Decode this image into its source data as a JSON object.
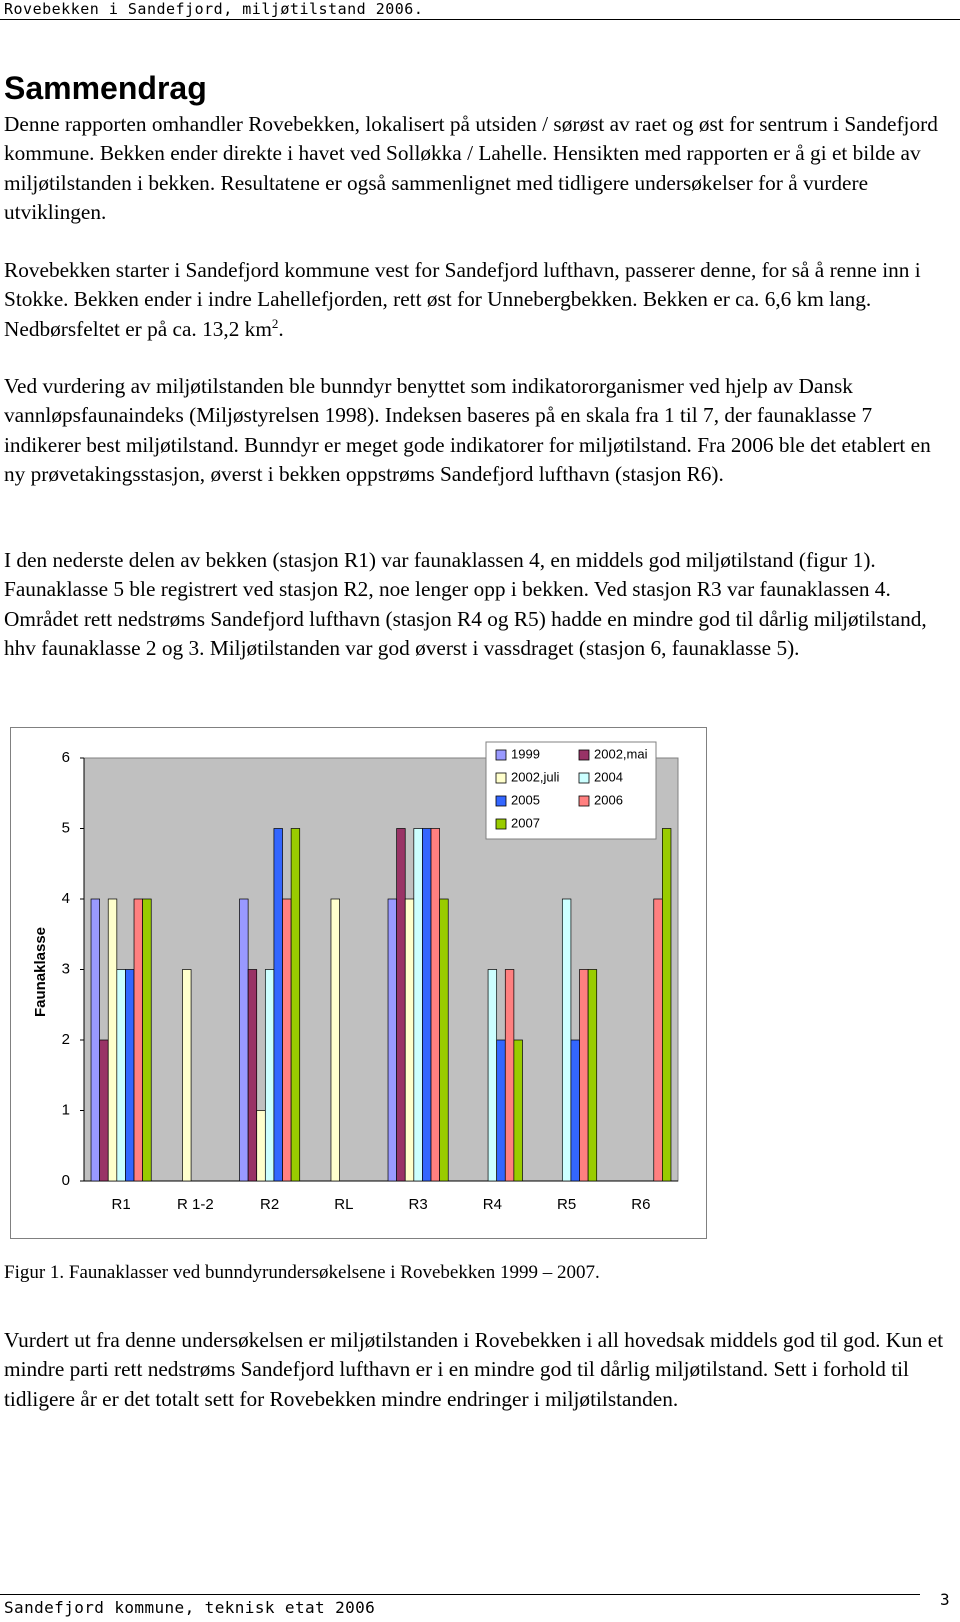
{
  "header": "Rovebekken i Sandefjord, miljøtilstand 2006.",
  "heading": "Sammendrag",
  "paragraphs": [
    {
      "text": "Denne rapporten omhandler Rovebekken, lokalisert på utsiden / sørøst av raet og øst for sentrum i Sandefjord kommune. Bekken ender direkte i havet ved Solløkka / Lahelle. Hensikten med rapporten er å gi et bilde av miljøtilstanden i bekken. Resultatene er også sammenlignet med tidligere undersøkelser for å vurdere utviklingen."
    },
    {
      "text": "Rovebekken starter i Sandefjord kommune vest for Sandefjord lufthavn, passerer denne, for så å renne inn i Stokke. Bekken ender i indre Lahellefjorden, rett øst for Unnebergbekken. Bekken er ca. 6,6 km lang. Nedbørsfeltet er på ca. 13,2 km",
      "superscript": "2",
      "after": "."
    },
    {
      "text": "Ved vurdering av miljøtilstanden ble bunndyr benyttet som indikatororganismer ved hjelp av Dansk vannløpsfaunaindeks (Miljøstyrelsen 1998). Indeksen baseres på en skala fra 1 til 7, der faunaklasse 7 indikerer best miljøtilstand. Bunndyr er meget gode indikatorer for miljøtilstand. Fra 2006 ble det etablert en ny prøvetakingsstasjon, øverst i bekken oppstrøms Sandefjord lufthavn (stasjon R6)."
    },
    {
      "text": "I den nederste delen av bekken (stasjon R1) var faunaklassen 4, en middels god miljøtilstand (figur 1). Faunaklasse 5 ble registrert ved stasjon R2, noe lenger opp i bekken. Ved stasjon R3 var faunaklassen 4. Området rett nedstrøms Sandefjord lufthavn (stasjon R4 og R5) hadde en mindre god til dårlig miljøtilstand, hhv faunaklasse 2 og 3. Miljøtilstanden var god øverst i vassdraget (stasjon 6, faunaklasse 5)."
    }
  ],
  "chart_data": {
    "type": "bar",
    "y_label": "Faunaklasse",
    "categories": [
      "R1",
      "R 1-2",
      "R2",
      "RL",
      "R3",
      "R4",
      "R5",
      "R6"
    ],
    "series": [
      {
        "name": "1999",
        "color": "#9999ff",
        "values": [
          4,
          null,
          4,
          null,
          4,
          null,
          null,
          null
        ]
      },
      {
        "name": "2002,mai",
        "color": "#993366",
        "values": [
          2,
          null,
          3,
          null,
          5,
          null,
          null,
          null
        ]
      },
      {
        "name": "2002,juli",
        "color": "#ffffcc",
        "values": [
          4,
          3,
          1,
          4,
          4,
          null,
          null,
          null
        ]
      },
      {
        "name": "2004",
        "color": "#ccffff",
        "values": [
          3,
          null,
          3,
          null,
          5,
          3,
          4,
          null
        ]
      },
      {
        "name": "2005",
        "color": "#3366ff",
        "values": [
          3,
          null,
          5,
          null,
          5,
          2,
          2,
          null
        ]
      },
      {
        "name": "2006",
        "color": "#ff8080",
        "values": [
          4,
          null,
          4,
          null,
          5,
          3,
          3,
          4
        ]
      },
      {
        "name": "2007",
        "color": "#99cc00",
        "values": [
          4,
          null,
          5,
          null,
          4,
          2,
          3,
          5
        ]
      }
    ],
    "ylim": [
      0,
      6
    ],
    "yticks": [
      0,
      1,
      2,
      3,
      4,
      5,
      6
    ],
    "grid": false,
    "legend": "top-right"
  },
  "caption": "Figur 1. Faunaklasser ved bunndyrundersøkelsene i Rovebekken 1999 – 2007.",
  "conclusion": "Vurdert ut fra denne undersøkelsen er miljøtilstanden i Rovebekken i all hovedsak middels god til god. Kun et mindre parti rett nedstrøms Sandefjord lufthavn er i en mindre god til dårlig miljøtilstand. Sett i forhold til tidligere år er det totalt sett for Rovebekken mindre endringer i miljøtilstanden.",
  "footer": {
    "text": "Sandefjord kommune, teknisk etat 2006",
    "page": "3"
  }
}
